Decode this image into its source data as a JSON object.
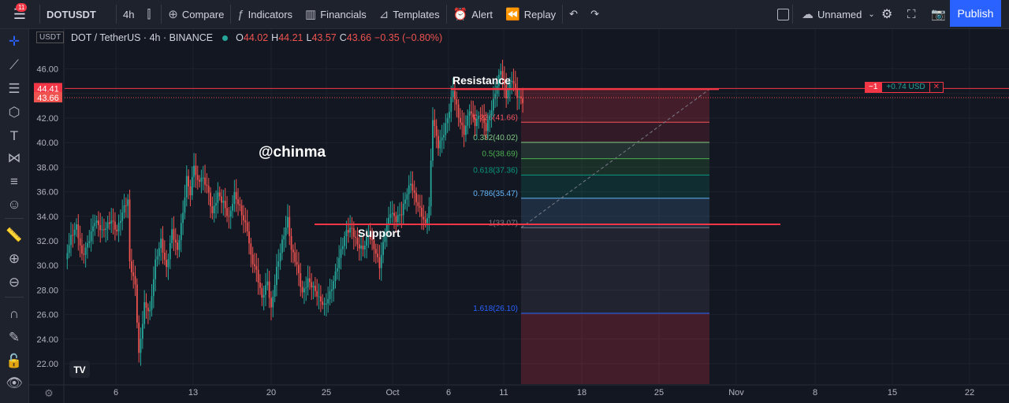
{
  "topbar": {
    "notification_count": "11",
    "symbol": "DOTUSDT",
    "interval": "4h",
    "compare": "Compare",
    "indicators": "Indicators",
    "financials": "Financials",
    "templates": "Templates",
    "alert": "Alert",
    "replay": "Replay",
    "layout_name": "Unnamed",
    "publish": "Publish"
  },
  "legend": {
    "title": "DOT / TetherUS · 4h · BINANCE",
    "open_label": "O",
    "open": "44.02",
    "high_label": "H",
    "high": "44.21",
    "low_label": "L",
    "low": "43.57",
    "close_label": "C",
    "close": "43.66",
    "change": "−0.35 (−0.80%)"
  },
  "currency": "USDT",
  "position_tag": {
    "qty": "−1",
    "pnl": "+0.74 USD",
    "close": "✕"
  },
  "annotations": {
    "watermark": "@chinma",
    "resistance": "Resistance",
    "support": "Support"
  },
  "colors": {
    "background": "#131722",
    "up": "#26a69a",
    "down": "#ef5350",
    "accent": "#2962ff",
    "resistance_line": "#f23645"
  },
  "icons": [
    "menu-icon",
    "candles-icon",
    "compare-plus-icon",
    "fx-icon",
    "financials-icon",
    "templates-icon",
    "alarm-clock-icon",
    "replay-icon",
    "undo-icon",
    "redo-icon",
    "layout-square-icon",
    "cloud-icon",
    "gear-icon",
    "fullscreen-icon",
    "camera-icon",
    "crosshair-icon",
    "trendline-icon",
    "fib-icon",
    "patterns-icon",
    "text-icon",
    "projection-icon",
    "measure-icon",
    "emoji-icon",
    "ruler-icon",
    "zoom-in-icon",
    "zoom-out-icon",
    "magnet-icon",
    "lock-pencil-icon",
    "lock-icon",
    "eye-icon",
    "settings-icon",
    "tv-logo-icon"
  ],
  "chart_data": {
    "type": "candlestick",
    "symbol": "DOTUSDT",
    "interval": "4h",
    "ylim": [
      21,
      47
    ],
    "y_ticks": [
      22,
      24,
      26,
      28,
      30,
      32,
      34,
      36,
      38,
      40,
      42,
      44,
      46
    ],
    "x_ticks": [
      "6",
      "13",
      "20",
      "25",
      "Oct",
      "6",
      "11",
      "18",
      "25",
      "Nov",
      "8",
      "15",
      "22"
    ],
    "price_labels": [
      {
        "value": 44.41,
        "text": "44.41",
        "color": "#f23645"
      },
      {
        "value": 43.66,
        "text": "43.66",
        "color": "#ef5350"
      }
    ],
    "horizontal_lines": [
      {
        "name": "Resistance",
        "value": 44.35
      },
      {
        "name": "Support",
        "value": 33.35
      }
    ],
    "fib_levels": [
      {
        "label": "0.236(41.66)",
        "value": 41.66,
        "color": "#f7525f"
      },
      {
        "label": "0.382(40.02)",
        "value": 40.02,
        "color": "#81c784"
      },
      {
        "label": "0.5(38.69)",
        "value": 38.69,
        "color": "#4caf50"
      },
      {
        "label": "0.618(37.36)",
        "value": 37.36,
        "color": "#089981"
      },
      {
        "label": "0.786(35.47)",
        "value": 35.47,
        "color": "#64b5f6"
      },
      {
        "label": "1(33.07)",
        "value": 33.07,
        "color": "#787b86"
      },
      {
        "label": "1.618(26.10)",
        "value": 26.1,
        "color": "#2962ff"
      }
    ],
    "series_path": [
      [
        0,
        30.5
      ],
      [
        3,
        32
      ],
      [
        6,
        33
      ],
      [
        9,
        31
      ],
      [
        12,
        32
      ],
      [
        16,
        33.5
      ],
      [
        20,
        32.5
      ],
      [
        25,
        34
      ],
      [
        28,
        33
      ],
      [
        32,
        34.5
      ],
      [
        34,
        35
      ],
      [
        35,
        30
      ],
      [
        38,
        28.5
      ],
      [
        40,
        23
      ],
      [
        43,
        27
      ],
      [
        46,
        26
      ],
      [
        49,
        30
      ],
      [
        52,
        32
      ],
      [
        55,
        30
      ],
      [
        58,
        33
      ],
      [
        61,
        31
      ],
      [
        64,
        34
      ],
      [
        66,
        37
      ],
      [
        68,
        36
      ],
      [
        70,
        38.5
      ],
      [
        72,
        37
      ],
      [
        74,
        37.2
      ],
      [
        77,
        36.2
      ],
      [
        80,
        34
      ],
      [
        83,
        36
      ],
      [
        86,
        35.4
      ],
      [
        89,
        33.8
      ],
      [
        92,
        35.5
      ],
      [
        95,
        34.5
      ],
      [
        97,
        33.8
      ],
      [
        99,
        33.2
      ],
      [
        101,
        31
      ],
      [
        104,
        29.5
      ],
      [
        107,
        27
      ],
      [
        110,
        28.5
      ],
      [
        112,
        26.5
      ],
      [
        115,
        30
      ],
      [
        118,
        32
      ],
      [
        121,
        33.5
      ],
      [
        123,
        31
      ],
      [
        126,
        30
      ],
      [
        129,
        28
      ],
      [
        132,
        29
      ],
      [
        135,
        28
      ],
      [
        138,
        27
      ],
      [
        141,
        26.7
      ],
      [
        144,
        28
      ],
      [
        147,
        29.5
      ],
      [
        150,
        31
      ],
      [
        153,
        32.5
      ],
      [
        156,
        33
      ],
      [
        159,
        32
      ],
      [
        162,
        31.5
      ],
      [
        165,
        32.3
      ],
      [
        168,
        31.2
      ],
      [
        171,
        30
      ],
      [
        174,
        33
      ],
      [
        177,
        34.5
      ],
      [
        180,
        33.5
      ],
      [
        183,
        34
      ],
      [
        186,
        36
      ],
      [
        188,
        37
      ],
      [
        191,
        35.5
      ],
      [
        194,
        34
      ],
      [
        196,
        33
      ],
      [
        198,
        34.5
      ],
      [
        200,
        42
      ],
      [
        203,
        40
      ],
      [
        206,
        41
      ],
      [
        209,
        42.5
      ],
      [
        211,
        44
      ],
      [
        214,
        42
      ],
      [
        217,
        41
      ],
      [
        220,
        43
      ],
      [
        223,
        41.5
      ],
      [
        226,
        42
      ],
      [
        229,
        41
      ],
      [
        232,
        43
      ],
      [
        235,
        45
      ],
      [
        237,
        46
      ],
      [
        240,
        43.5
      ],
      [
        243,
        45
      ],
      [
        246,
        44
      ],
      [
        249,
        43.7
      ]
    ],
    "annotations": [
      "Resistance",
      "Support",
      "@chinma"
    ]
  }
}
